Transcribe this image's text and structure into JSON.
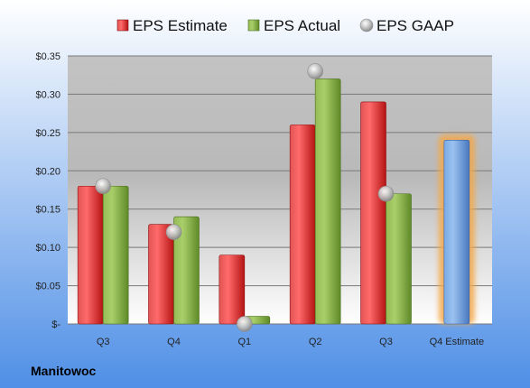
{
  "company": "Manitowoc",
  "colors": {
    "estimate": "#d42a2a",
    "actual": "#7aa43a",
    "gaap": "#b9b9b9",
    "forecast": "#6d9edb",
    "forecast_glow": "#f4a84a"
  },
  "chart_data": {
    "type": "bar",
    "categories": [
      "Q3",
      "Q4",
      "Q1",
      "Q2",
      "Q3",
      "Q4 Estimate"
    ],
    "series": [
      {
        "name": "EPS Estimate",
        "kind": "bar",
        "values": [
          0.18,
          0.13,
          0.09,
          0.26,
          0.29,
          null
        ]
      },
      {
        "name": "EPS Actual",
        "kind": "bar",
        "values": [
          0.18,
          0.14,
          0.01,
          0.32,
          0.17,
          null
        ]
      },
      {
        "name": "EPS GAAP",
        "kind": "marker",
        "values": [
          0.18,
          0.12,
          0.0,
          0.33,
          0.17,
          null
        ]
      },
      {
        "name": "",
        "kind": "forecast-bar",
        "values": [
          null,
          null,
          null,
          null,
          null,
          0.24
        ]
      }
    ],
    "yticks": [
      "$-",
      "$0.05",
      "$0.10",
      "$0.15",
      "$0.20",
      "$0.25",
      "$0.30",
      "$0.35"
    ],
    "ylim": [
      0,
      0.35
    ],
    "title": "",
    "xlabel": "",
    "ylabel": "",
    "grid": true,
    "legend_position": "top"
  }
}
